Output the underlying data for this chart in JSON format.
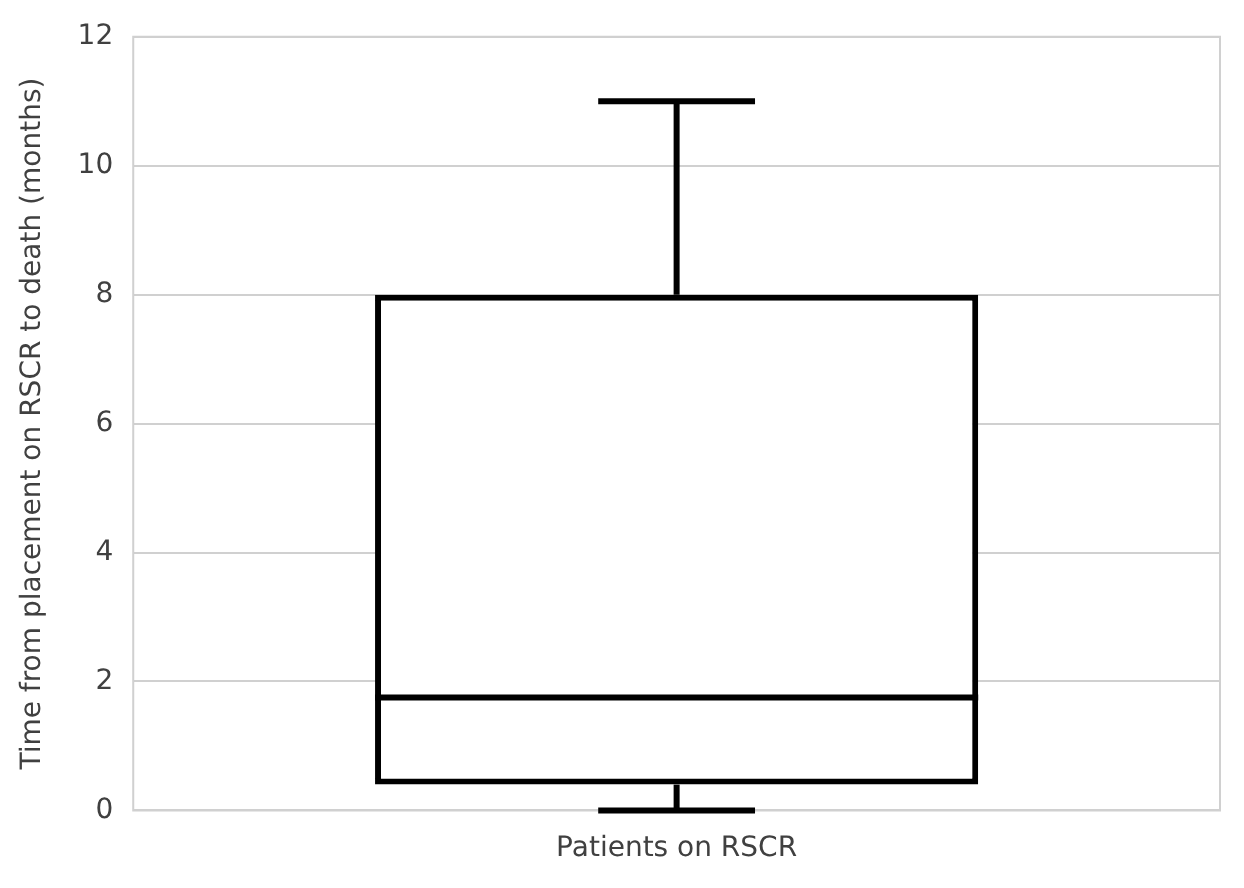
{
  "chart_data": {
    "type": "box",
    "categories": [
      "Patients on RSCR"
    ],
    "ylabel": "Time from placement on RSCR to death (months)",
    "boxes": [
      {
        "low": 0,
        "q1": 0.4,
        "median": 1.75,
        "q3": 8,
        "high": 11
      }
    ],
    "color": "#000000",
    "ylim": [
      0,
      12
    ],
    "yticks": [
      0,
      2,
      4,
      6,
      8,
      10,
      12
    ],
    "grid": "y",
    "legend": false
  }
}
